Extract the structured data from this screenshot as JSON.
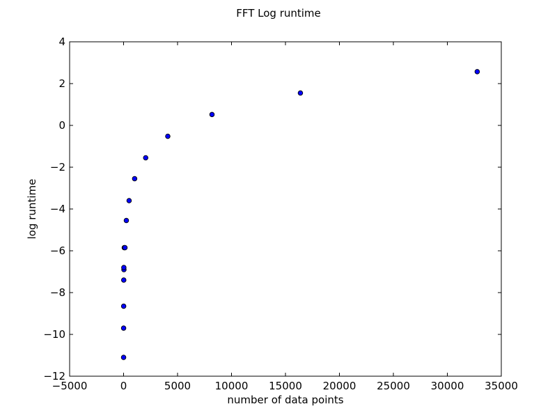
{
  "chart_data": {
    "type": "scatter",
    "title": "FFT Log runtime",
    "xlabel": "number of data points",
    "ylabel": "log runtime",
    "xlim": [
      -5000,
      35000
    ],
    "ylim": [
      -12,
      4
    ],
    "xticks": [
      -5000,
      0,
      5000,
      10000,
      15000,
      20000,
      25000,
      30000,
      35000
    ],
    "xtick_labels": [
      "−5000",
      "0",
      "5000",
      "10000",
      "15000",
      "20000",
      "25000",
      "30000",
      "35000"
    ],
    "yticks": [
      4,
      2,
      0,
      -2,
      -4,
      -6,
      -8,
      -10,
      -12
    ],
    "ytick_labels": [
      "4",
      "2",
      "0",
      "−2",
      "−4",
      "−6",
      "−8",
      "−10",
      "−12"
    ],
    "grid": false,
    "legend": false,
    "marker_color": "#0000ff",
    "marker_edge": "#000000",
    "points": [
      {
        "x": 2,
        "y": -11.1
      },
      {
        "x": 4,
        "y": -9.7
      },
      {
        "x": 8,
        "y": -8.65
      },
      {
        "x": 16,
        "y": -7.4
      },
      {
        "x": 32,
        "y": -6.9
      },
      {
        "x": 24,
        "y": -6.8
      },
      {
        "x": 64,
        "y": -5.85
      },
      {
        "x": 128,
        "y": -5.85
      },
      {
        "x": 256,
        "y": -4.55
      },
      {
        "x": 512,
        "y": -3.6
      },
      {
        "x": 1024,
        "y": -2.55
      },
      {
        "x": 2048,
        "y": -1.55
      },
      {
        "x": 4096,
        "y": -0.52
      },
      {
        "x": 8192,
        "y": 0.52
      },
      {
        "x": 16384,
        "y": 1.55
      },
      {
        "x": 32768,
        "y": 2.57
      }
    ]
  }
}
